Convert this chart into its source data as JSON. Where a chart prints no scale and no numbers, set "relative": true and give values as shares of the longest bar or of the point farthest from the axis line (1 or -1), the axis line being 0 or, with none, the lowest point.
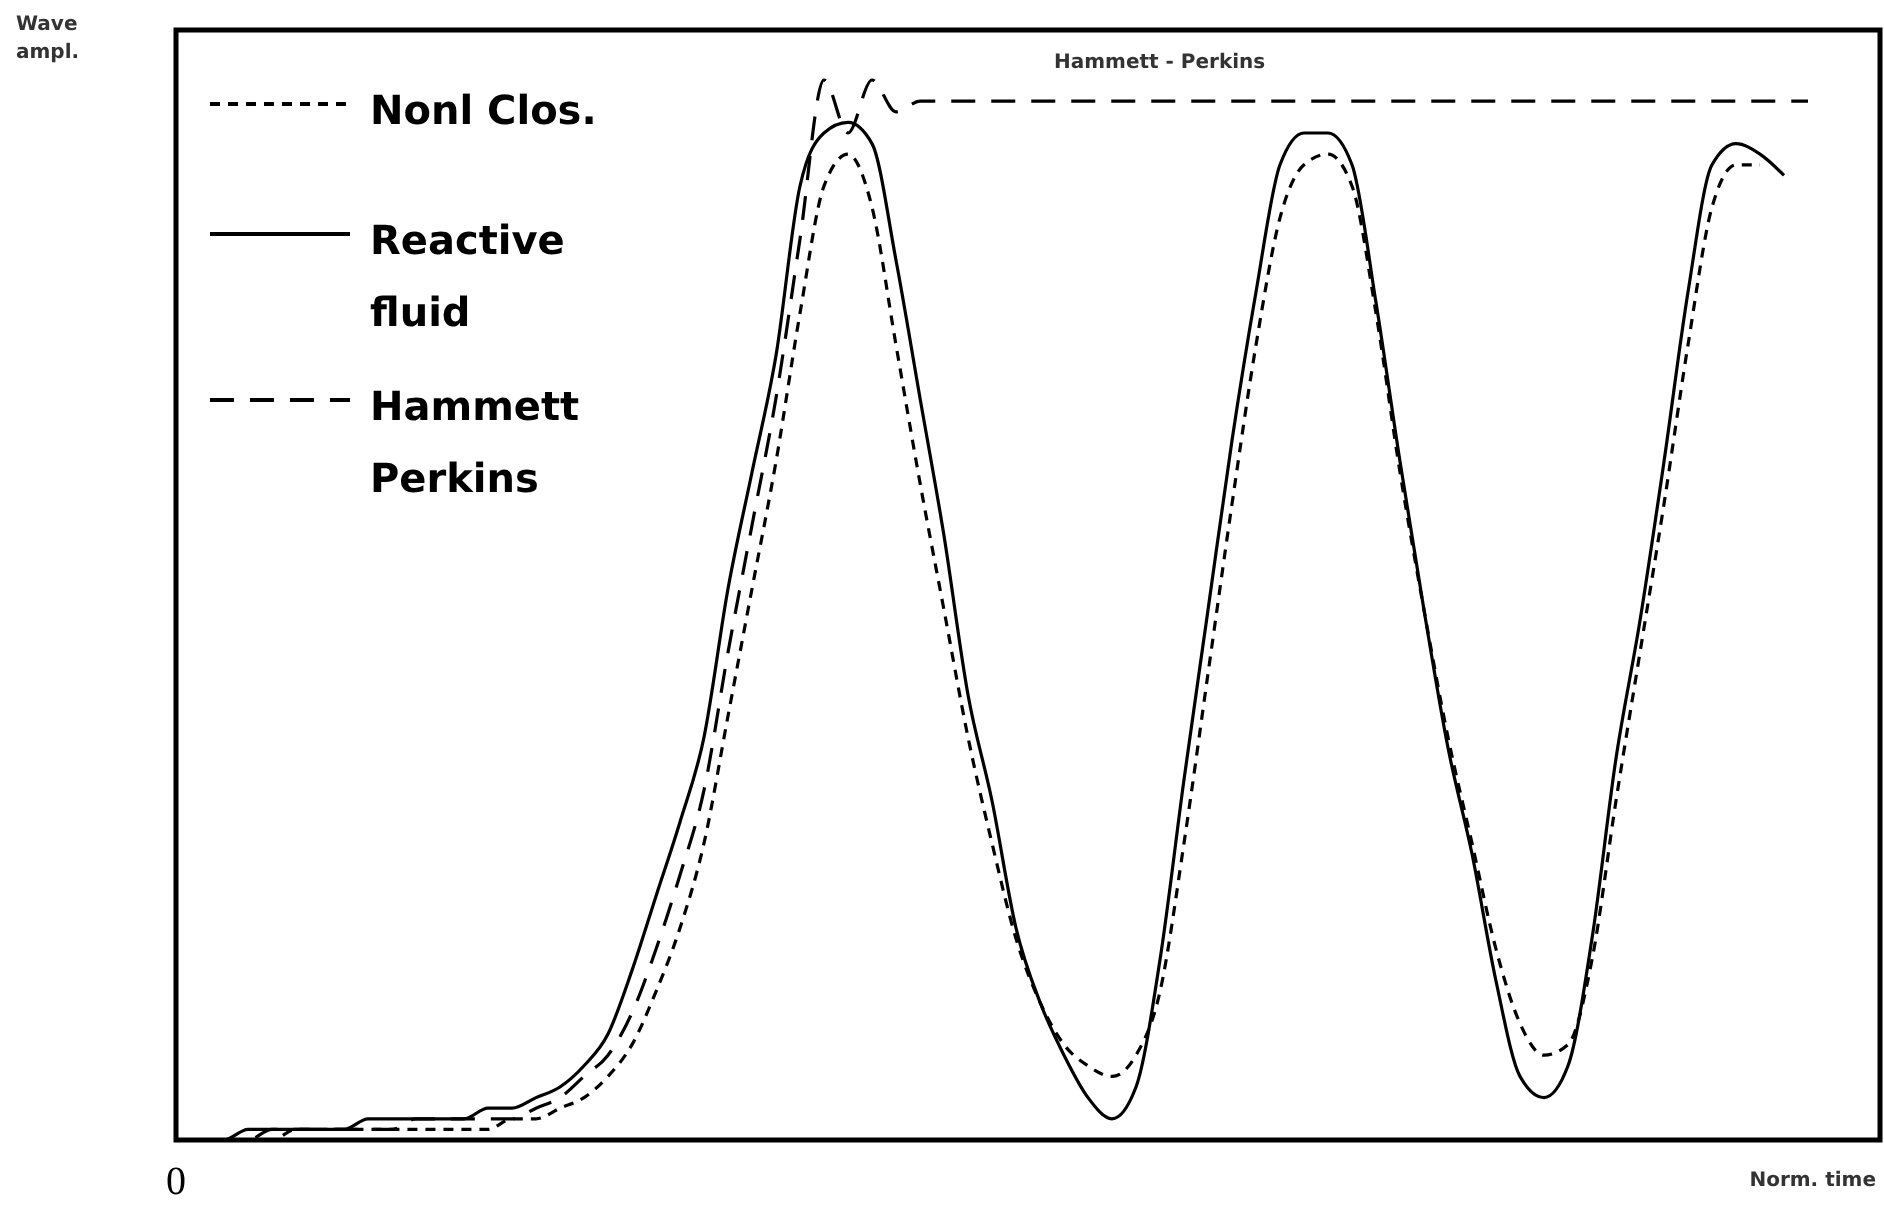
{
  "chart_data": {
    "type": "line",
    "relative": true,
    "xlabel": "Norm. time",
    "ylabel": "Wave ampl.",
    "legend": "top left",
    "grid": false,
    "marker": "none",
    "categories": [
      null,
      null,
      null,
      null,
      null,
      null,
      null,
      null,
      null,
      null,
      null,
      null,
      null,
      null,
      null,
      null,
      null,
      null,
      null,
      null,
      null,
      null,
      null,
      null,
      null,
      null,
      null,
      null,
      null,
      null,
      null,
      null,
      null,
      null,
      null,
      null,
      null,
      null,
      null,
      null,
      null,
      null,
      null,
      null,
      null,
      null,
      null,
      null,
      null,
      null,
      null,
      null,
      null,
      null,
      null,
      null,
      null,
      null,
      null,
      null,
      null,
      null,
      null,
      null,
      null,
      null,
      null,
      null,
      null,
      null,
      null,
      null
    ],
    "annotations": [
      {
        "text": "0",
        "y": 0
      },
      "Hammett - Perkins"
    ],
    "series": [
      {
        "name": "Nonl Clos.",
        "color": "#000000",
        "line_style": "dotted",
        "values": [
          0,
          0,
          0,
          0,
          0,
          0.01,
          0.01,
          0.01,
          0.01,
          0.01,
          0.01,
          0.01,
          0.01,
          0.01,
          0.02,
          0.02,
          0.03,
          0.04,
          0.06,
          0.09,
          0.14,
          0.2,
          0.28,
          0.4,
          0.52,
          0.64,
          0.78,
          0.9,
          0.93,
          0.88,
          0.75,
          0.62,
          0.5,
          0.38,
          0.28,
          0.19,
          0.13,
          0.09,
          0.07,
          0.06,
          0.08,
          0.14,
          0.28,
          0.44,
          0.6,
          0.75,
          0.87,
          0.92,
          0.93,
          0.9,
          0.78,
          0.63,
          0.5,
          0.38,
          0.28,
          0.18,
          0.11,
          0.08,
          0.09,
          0.17,
          0.32,
          0.46,
          0.6,
          0.75,
          0.88,
          0.92,
          0.92,
          null,
          null,
          null,
          null,
          null
        ]
      },
      {
        "name": "Reactive fluid",
        "color": "#000000",
        "line_style": "solid",
        "values": [
          0,
          0,
          0,
          0.01,
          0.01,
          0.01,
          0.01,
          0.01,
          0.02,
          0.02,
          0.02,
          0.02,
          0.02,
          0.03,
          0.03,
          0.04,
          0.05,
          0.07,
          0.1,
          0.16,
          0.23,
          0.3,
          0.38,
          0.52,
          0.63,
          0.74,
          0.9,
          0.95,
          0.96,
          0.94,
          0.83,
          0.7,
          0.57,
          0.42,
          0.32,
          0.2,
          0.13,
          0.08,
          0.04,
          0.02,
          0.05,
          0.17,
          0.34,
          0.5,
          0.66,
          0.8,
          0.92,
          0.95,
          0.95,
          0.92,
          0.79,
          0.64,
          0.5,
          0.37,
          0.27,
          0.15,
          0.06,
          0.04,
          0.07,
          0.19,
          0.36,
          0.49,
          0.64,
          0.8,
          0.92,
          0.94,
          0.93,
          0.91,
          null,
          null,
          null,
          null
        ]
      },
      {
        "name": "Hammett Perkins",
        "color": "#000000",
        "line_style": "dashed",
        "values": [
          0,
          0,
          0,
          0,
          0.01,
          0.01,
          0.01,
          0.01,
          0.01,
          0.01,
          0.02,
          0.02,
          0.02,
          0.02,
          0.02,
          0.03,
          0.04,
          0.06,
          0.08,
          0.12,
          0.18,
          0.25,
          0.33,
          0.46,
          0.58,
          0.7,
          0.85,
          1.0,
          0.95,
          1.0,
          0.97,
          0.98,
          0.98,
          0.98,
          0.98,
          0.98,
          0.98,
          0.98,
          0.98,
          0.98,
          0.98,
          0.98,
          0.98,
          0.98,
          0.98,
          0.98,
          0.98,
          0.98,
          0.98,
          0.98,
          0.98,
          0.98,
          0.98,
          0.98,
          0.98,
          0.98,
          0.98,
          0.98,
          0.98,
          0.98,
          0.98,
          0.98,
          0.98,
          0.98,
          0.98,
          0.98,
          0.98,
          0.98,
          0.98,
          null,
          null,
          null
        ]
      }
    ]
  }
}
